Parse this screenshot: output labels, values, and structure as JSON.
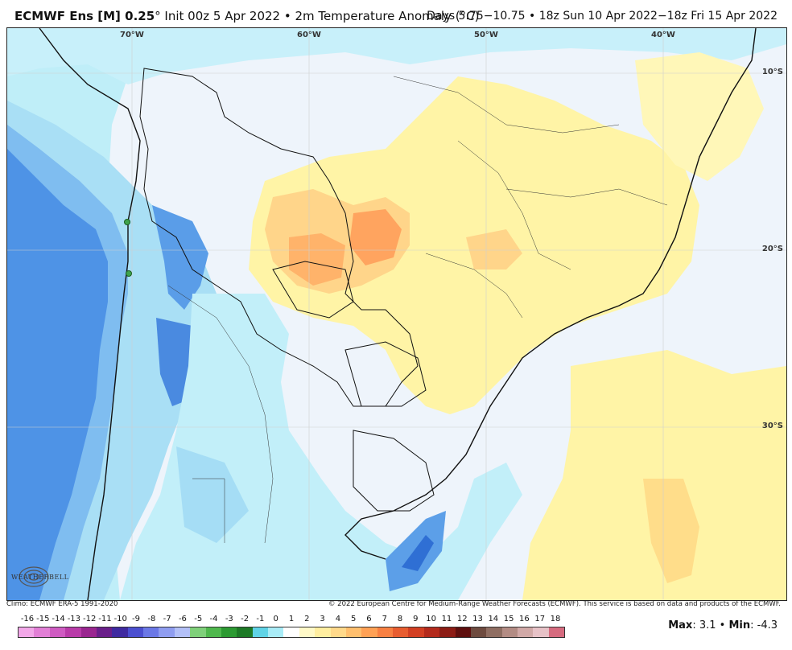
{
  "header": {
    "title_model": "ECMWF Ens [M] 0.25",
    "title_rest": "° Init 00z 5 Apr 2022 • 2m Temperature Anomaly (°C)",
    "valid": "Days 5.75−10.75 • 18z Sun 10 Apr 2022−18z Fri 15 Apr 2022"
  },
  "map": {
    "lon_labels": [
      "70°W",
      "60°W",
      "50°W",
      "40°W"
    ],
    "lat_labels": [
      "10°S",
      "20°S",
      "30°S"
    ]
  },
  "footer": {
    "climo": "Climo: ECMWF ERA-5 1991-2020",
    "copyright": "© 2022 European Centre for Medium-Range Weather Forecasts (ECMWF). This service is based on data and products of the ECMWF."
  },
  "colorbar": {
    "ticks": [
      "-16",
      "-15",
      "-14",
      "-13",
      "-12",
      "-11",
      "-10",
      "-9",
      "-8",
      "-7",
      "-6",
      "-5",
      "-4",
      "-3",
      "-2",
      "-1",
      "0",
      "1",
      "2",
      "3",
      "4",
      "5",
      "6",
      "7",
      "8",
      "9",
      "10",
      "11",
      "12",
      "13",
      "14",
      "15",
      "16",
      "17",
      "18"
    ],
    "colors": [
      "#f2a7e8",
      "#e27fd6",
      "#cf5bc2",
      "#b93ba9",
      "#9a2690",
      "#6a1f8a",
      "#3f2aa0",
      "#4b4fd0",
      "#6b78e6",
      "#8f9df0",
      "#b3c0f7",
      "#7fd07a",
      "#4fb84d",
      "#2c9a32",
      "#1d7a26",
      "#5fd3e6",
      "#a9ecf7",
      "#ffffff",
      "#fff9c8",
      "#ffeea0",
      "#ffd98a",
      "#ffbf6e",
      "#ffa155",
      "#f88042",
      "#e85d30",
      "#d23f23",
      "#b32a1c",
      "#8c1c15",
      "#5e0f0e",
      "#6e4b3f",
      "#8f6e62",
      "#b38c84",
      "#d1a9a7",
      "#e7c2c7",
      "#d66b7f"
    ]
  },
  "stats": {
    "max_label": "Max",
    "max_value": ": 3.1",
    "sep": " • ",
    "min_label": "Min",
    "min_value": ": -4.3"
  },
  "logo_text": "WEATHERBELL"
}
